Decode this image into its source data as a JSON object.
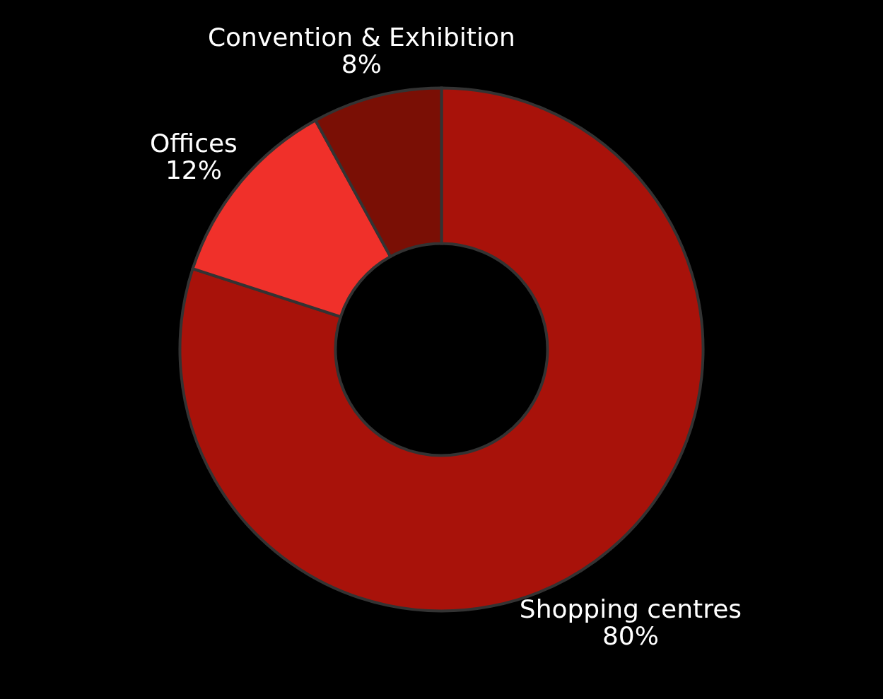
{
  "chart_data": {
    "type": "donut",
    "categories": [
      "Shopping centres",
      "Offices",
      "Convention & Exhibition"
    ],
    "values": [
      80,
      12,
      8
    ],
    "colors": [
      "#a8120a",
      "#f0302a",
      "#7a0f05"
    ],
    "value_labels": [
      "80%",
      "12%",
      "8%"
    ]
  }
}
